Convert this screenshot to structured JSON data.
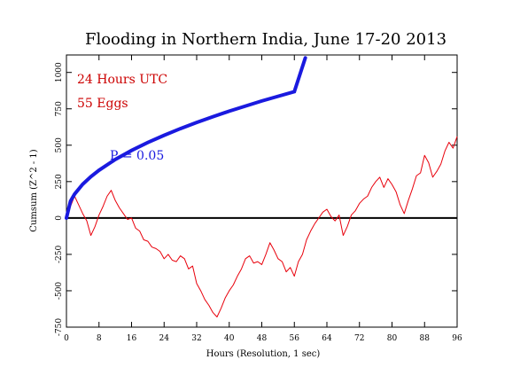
{
  "chart_data": {
    "type": "line",
    "title": "Flooding in Northern India, June 17-20 2013",
    "xlabel": "Hours (Resolution, 1 sec)",
    "ylabel": "Cumsum (Z^2 - 1)",
    "xlim": [
      0,
      96
    ],
    "ylim": [
      -750,
      1120
    ],
    "grid": false,
    "x_ticks": [
      0,
      8,
      16,
      24,
      32,
      40,
      48,
      56,
      64,
      72,
      80,
      88,
      96
    ],
    "y_ticks": [
      -750,
      -500,
      -250,
      0,
      250,
      500,
      750,
      1000
    ],
    "annotations": {
      "duration": "24 Hours UTC",
      "eggs": "55 Eggs",
      "probability": "P = 0.05"
    },
    "colors": {
      "cumsum": "#e8000b",
      "probability": "#1a1adf",
      "zero_line": "#000000",
      "annotation_red": "#cc0000",
      "annotation_blue": "#1a1adf"
    },
    "series": [
      {
        "key": "cumsum",
        "x": [
          0,
          1,
          2,
          3,
          4,
          5,
          6,
          7,
          8,
          9,
          10,
          11,
          12,
          13,
          14,
          15,
          16,
          17,
          18,
          19,
          20,
          21,
          22,
          23,
          24,
          25,
          26,
          27,
          28,
          29,
          30,
          31,
          32,
          33,
          34,
          35,
          36,
          37,
          38,
          39,
          40,
          41,
          42,
          43,
          44,
          45,
          46,
          47,
          48,
          49,
          50,
          51,
          52,
          53,
          54,
          55,
          56,
          57,
          58,
          59,
          60,
          61,
          62,
          63,
          64,
          65,
          66,
          67,
          68,
          69,
          70,
          71,
          72,
          73,
          74,
          75,
          76,
          77,
          78,
          79,
          80,
          81,
          82,
          83,
          84,
          85,
          86,
          87,
          88,
          89,
          90,
          91,
          92,
          93,
          94,
          95,
          96
        ],
        "values": [
          0,
          80,
          150,
          90,
          30,
          -20,
          -120,
          -60,
          20,
          80,
          150,
          190,
          120,
          70,
          30,
          -10,
          0,
          -70,
          -90,
          -150,
          -160,
          -200,
          -210,
          -230,
          -280,
          -250,
          -290,
          -300,
          -260,
          -280,
          -350,
          -330,
          -450,
          -500,
          -560,
          -600,
          -650,
          -680,
          -620,
          -550,
          -500,
          -460,
          -400,
          -350,
          -280,
          -260,
          -310,
          -300,
          -320,
          -250,
          -170,
          -220,
          -280,
          -300,
          -370,
          -340,
          -400,
          -300,
          -250,
          -150,
          -90,
          -40,
          0,
          40,
          60,
          10,
          -20,
          20,
          -120,
          -60,
          20,
          50,
          100,
          130,
          150,
          210,
          250,
          280,
          210,
          270,
          230,
          180,
          90,
          30,
          120,
          200,
          290,
          310,
          430,
          380,
          280,
          320,
          370,
          460,
          520,
          480,
          560
        ]
      },
      {
        "key": "probability",
        "x": [
          0,
          1,
          2,
          4,
          6,
          8,
          12,
          16,
          20,
          24,
          28,
          32,
          36,
          40,
          44,
          48,
          52,
          56,
          58.7
        ],
        "values": [
          0,
          116,
          164,
          232,
          284,
          328,
          402,
          464,
          519,
          568,
          614,
          656,
          696,
          734,
          769,
          804,
          836,
          868,
          1100
        ]
      }
    ]
  }
}
